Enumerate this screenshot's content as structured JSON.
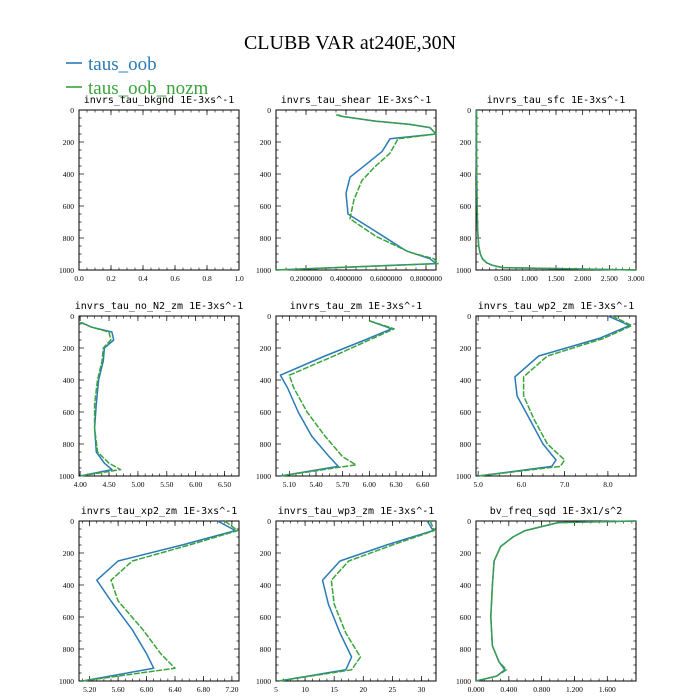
{
  "title": "CLUBB VAR at240E,30N",
  "legend": [
    {
      "name": "taus_oob",
      "color": "#2a7ab8"
    },
    {
      "name": "taus_oob_nozm",
      "color": "#3aa43a"
    }
  ],
  "chart_data": [
    {
      "type": "line",
      "title": "invrs_tau_bkgnd   1E-3xs^-1",
      "xlim": [
        0,
        1
      ],
      "ylim": [
        1000,
        0
      ],
      "xticks": [
        {
          "v": 0,
          "t": "0.0"
        },
        {
          "v": 0.2,
          "t": "0.2"
        },
        {
          "v": 0.4,
          "t": "0.4"
        },
        {
          "v": 0.6,
          "t": "0.6"
        },
        {
          "v": 0.8,
          "t": "0.8"
        },
        {
          "v": 1,
          "t": "1.0"
        }
      ],
      "yticks": [
        {
          "v": 0,
          "t": "0"
        },
        {
          "v": 200,
          "t": "200"
        },
        {
          "v": 400,
          "t": "400"
        },
        {
          "v": 600,
          "t": "600"
        },
        {
          "v": 800,
          "t": "800"
        },
        {
          "v": 1000,
          "t": "1000"
        }
      ],
      "series": [
        {
          "name": "taus_oob",
          "x": [],
          "y": []
        },
        {
          "name": "taus_oob_nozm",
          "x": [],
          "y": []
        }
      ]
    },
    {
      "type": "line",
      "title": "invrs_tau_shear   1E-3xs^-1",
      "xlim": [
        0.05,
        0.85
      ],
      "ylim": [
        1000,
        0
      ],
      "xticks": [
        {
          "v": 0.2,
          "t": "0.2000000"
        },
        {
          "v": 0.4,
          "t": "0.4000000"
        },
        {
          "v": 0.6,
          "t": "0.6000000"
        },
        {
          "v": 0.8,
          "t": "0.8000000"
        }
      ],
      "yticks": [
        {
          "v": 0,
          "t": "0"
        },
        {
          "v": 200,
          "t": "200"
        },
        {
          "v": 400,
          "t": "400"
        },
        {
          "v": 600,
          "t": "600"
        },
        {
          "v": 800,
          "t": "800"
        },
        {
          "v": 1000,
          "t": "1000"
        }
      ],
      "series": [
        {
          "name": "taus_oob",
          "x": [
            0.36,
            0.38,
            0.55,
            0.72,
            0.82,
            0.85,
            0.62,
            0.58,
            0.5,
            0.42,
            0.4,
            0.41,
            0.55,
            0.7,
            0.82,
            0.85,
            0.05
          ],
          "y": [
            30,
            40,
            70,
            90,
            110,
            150,
            180,
            260,
            340,
            420,
            520,
            650,
            760,
            880,
            930,
            960,
            1000
          ]
        },
        {
          "name": "taus_oob_nozm",
          "x": [
            0.35,
            0.38,
            0.55,
            0.72,
            0.82,
            0.85,
            0.66,
            0.62,
            0.54,
            0.48,
            0.44,
            0.42,
            0.55,
            0.72,
            0.84,
            0.86,
            0.05
          ],
          "y": [
            30,
            40,
            70,
            90,
            110,
            150,
            180,
            270,
            360,
            440,
            560,
            680,
            790,
            890,
            930,
            960,
            1000
          ]
        }
      ]
    },
    {
      "type": "line",
      "title": "invrs_tau_sfc   1E-3xs^-1",
      "xlim": [
        0,
        3
      ],
      "ylim": [
        1000,
        0
      ],
      "xticks": [
        {
          "v": 0.5,
          "t": "0.500"
        },
        {
          "v": 1.0,
          "t": "1.000"
        },
        {
          "v": 1.5,
          "t": "1.500"
        },
        {
          "v": 2.0,
          "t": "2.000"
        },
        {
          "v": 2.5,
          "t": "2.500"
        },
        {
          "v": 3.0,
          "t": "3.000"
        }
      ],
      "yticks": [
        {
          "v": 0,
          "t": "0"
        },
        {
          "v": 200,
          "t": "200"
        },
        {
          "v": 400,
          "t": "400"
        },
        {
          "v": 600,
          "t": "600"
        },
        {
          "v": 800,
          "t": "800"
        },
        {
          "v": 1000,
          "t": "1000"
        }
      ],
      "series": [
        {
          "name": "taus_oob",
          "x": [
            0.01,
            0.01,
            0.02,
            0.03,
            0.05,
            0.08,
            0.12,
            0.2,
            0.3,
            0.5,
            3.0
          ],
          "y": [
            0,
            300,
            600,
            750,
            850,
            900,
            930,
            955,
            970,
            985,
            1000
          ]
        },
        {
          "name": "taus_oob_nozm",
          "x": [
            0.01,
            0.01,
            0.02,
            0.03,
            0.05,
            0.08,
            0.12,
            0.2,
            0.3,
            0.5,
            3.0
          ],
          "y": [
            0,
            300,
            600,
            750,
            850,
            900,
            930,
            955,
            970,
            985,
            1000
          ]
        }
      ]
    },
    {
      "type": "line",
      "title": "invrs_tau_no_N2_zm   1E-3xs^-1",
      "xlim": [
        3.98,
        6.75
      ],
      "ylim": [
        1000,
        0
      ],
      "xticks": [
        {
          "v": 4.0,
          "t": "4.00"
        },
        {
          "v": 4.5,
          "t": "4.50"
        },
        {
          "v": 5.0,
          "t": "5.00"
        },
        {
          "v": 5.5,
          "t": "5.50"
        },
        {
          "v": 6.0,
          "t": "6.00"
        },
        {
          "v": 6.5,
          "t": "6.50"
        }
      ],
      "yticks": [
        {
          "v": 0,
          "t": "0"
        },
        {
          "v": 200,
          "t": "200"
        },
        {
          "v": 400,
          "t": "400"
        },
        {
          "v": 600,
          "t": "600"
        },
        {
          "v": 800,
          "t": "800"
        },
        {
          "v": 1000,
          "t": "1000"
        }
      ],
      "series": [
        {
          "name": "taus_oob",
          "x": [
            4.02,
            4.2,
            4.55,
            4.58,
            4.42,
            4.4,
            4.32,
            4.28,
            4.25,
            4.28,
            4.42,
            4.55,
            4.0
          ],
          "y": [
            40,
            70,
            100,
            150,
            200,
            280,
            400,
            550,
            700,
            850,
            920,
            960,
            1000
          ]
        },
        {
          "name": "taus_oob_nozm",
          "x": [
            4.0,
            4.2,
            4.5,
            4.53,
            4.4,
            4.38,
            4.3,
            4.25,
            4.25,
            4.3,
            4.5,
            4.7,
            4.0
          ],
          "y": [
            40,
            70,
            100,
            150,
            200,
            280,
            400,
            550,
            700,
            850,
            920,
            960,
            1000
          ]
        }
      ]
    },
    {
      "type": "line",
      "title": "invrs_tau_zm   1E-3xs^-1",
      "xlim": [
        4.95,
        6.75
      ],
      "ylim": [
        1000,
        0
      ],
      "xticks": [
        {
          "v": 5.1,
          "t": "5.10"
        },
        {
          "v": 5.4,
          "t": "5.40"
        },
        {
          "v": 5.7,
          "t": "5.70"
        },
        {
          "v": 6.0,
          "t": "6.00"
        },
        {
          "v": 6.3,
          "t": "6.30"
        },
        {
          "v": 6.6,
          "t": "6.60"
        }
      ],
      "yticks": [
        {
          "v": 0,
          "t": "0"
        },
        {
          "v": 200,
          "t": "200"
        },
        {
          "v": 400,
          "t": "400"
        },
        {
          "v": 600,
          "t": "600"
        },
        {
          "v": 800,
          "t": "800"
        },
        {
          "v": 1000,
          "t": "1000"
        }
      ],
      "series": [
        {
          "name": "taus_oob",
          "x": [
            6.0,
            6.25,
            5.95,
            5.5,
            5.0,
            5.08,
            5.2,
            5.35,
            5.55,
            5.65,
            5.0
          ],
          "y": [
            30,
            80,
            150,
            250,
            370,
            450,
            600,
            750,
            880,
            940,
            1000
          ]
        },
        {
          "name": "taus_oob_nozm",
          "x": [
            6.0,
            6.28,
            6.0,
            5.6,
            5.1,
            5.15,
            5.3,
            5.5,
            5.7,
            5.85,
            5.0
          ],
          "y": [
            30,
            80,
            150,
            250,
            370,
            450,
            600,
            750,
            880,
            930,
            1000
          ]
        }
      ]
    },
    {
      "type": "line",
      "title": "invrs_tau_wp2_zm   1E-3xs^-1",
      "xlim": [
        4.95,
        8.65
      ],
      "ylim": [
        1000,
        0
      ],
      "xticks": [
        {
          "v": 5.0,
          "t": "5.0"
        },
        {
          "v": 6.0,
          "t": "6.0"
        },
        {
          "v": 7.0,
          "t": "7.0"
        },
        {
          "v": 8.0,
          "t": "8.0"
        }
      ],
      "yticks": [
        {
          "v": 0,
          "t": "0"
        },
        {
          "v": 200,
          "t": "200"
        },
        {
          "v": 400,
          "t": "400"
        },
        {
          "v": 600,
          "t": "600"
        },
        {
          "v": 800,
          "t": "800"
        },
        {
          "v": 1000,
          "t": "1000"
        }
      ],
      "series": [
        {
          "name": "taus_oob",
          "x": [
            8.0,
            8.5,
            7.8,
            6.4,
            5.85,
            5.9,
            6.2,
            6.5,
            6.8,
            6.7,
            5.0
          ],
          "y": [
            0,
            60,
            140,
            250,
            380,
            500,
            650,
            800,
            900,
            940,
            1000
          ]
        },
        {
          "name": "taus_oob_nozm",
          "x": [
            8.1,
            8.55,
            7.9,
            6.6,
            6.05,
            6.05,
            6.3,
            6.6,
            7.0,
            6.9,
            5.0
          ],
          "y": [
            0,
            60,
            140,
            250,
            380,
            500,
            650,
            800,
            900,
            940,
            1000
          ]
        }
      ]
    },
    {
      "type": "line",
      "title": "invrs_tau_xp2_zm   1E-3xs^-1",
      "xlim": [
        5.05,
        7.3
      ],
      "ylim": [
        1000,
        0
      ],
      "xticks": [
        {
          "v": 5.2,
          "t": "5.20"
        },
        {
          "v": 5.6,
          "t": "5.60"
        },
        {
          "v": 6.0,
          "t": "6.00"
        },
        {
          "v": 6.4,
          "t": "6.40"
        },
        {
          "v": 6.8,
          "t": "6.80"
        },
        {
          "v": 7.2,
          "t": "7.20"
        }
      ],
      "yticks": [
        {
          "v": 0,
          "t": "0"
        },
        {
          "v": 200,
          "t": "200"
        },
        {
          "v": 400,
          "t": "400"
        },
        {
          "v": 600,
          "t": "600"
        },
        {
          "v": 800,
          "t": "800"
        },
        {
          "v": 1000,
          "t": "1000"
        }
      ],
      "series": [
        {
          "name": "taus_oob",
          "x": [
            7.0,
            7.25,
            6.5,
            5.6,
            5.3,
            5.5,
            5.8,
            6.0,
            6.1,
            5.1
          ],
          "y": [
            0,
            60,
            150,
            250,
            370,
            500,
            680,
            830,
            920,
            1000
          ]
        },
        {
          "name": "taus_oob_nozm",
          "x": [
            7.1,
            7.28,
            6.6,
            5.8,
            5.5,
            5.6,
            5.95,
            6.2,
            6.4,
            5.1
          ],
          "y": [
            0,
            60,
            150,
            250,
            370,
            500,
            680,
            830,
            920,
            1000
          ]
        }
      ]
    },
    {
      "type": "line",
      "title": "invrs_tau_wp3_zm   1E-3xs^-1",
      "xlim": [
        5,
        32.5
      ],
      "ylim": [
        1000,
        0
      ],
      "xticks": [
        {
          "v": 5,
          "t": "5"
        },
        {
          "v": 10,
          "t": "10"
        },
        {
          "v": 15,
          "t": "15"
        },
        {
          "v": 20,
          "t": "20"
        },
        {
          "v": 25,
          "t": "25"
        },
        {
          "v": 30,
          "t": "30"
        }
      ],
      "yticks": [
        {
          "v": 0,
          "t": "0"
        },
        {
          "v": 200,
          "t": "200"
        },
        {
          "v": 400,
          "t": "400"
        },
        {
          "v": 600,
          "t": "600"
        },
        {
          "v": 800,
          "t": "800"
        },
        {
          "v": 1000,
          "t": "1000"
        }
      ],
      "series": [
        {
          "name": "taus_oob",
          "x": [
            31,
            32,
            24,
            16,
            13,
            14,
            16,
            18,
            17,
            5.5
          ],
          "y": [
            0,
            60,
            150,
            250,
            370,
            520,
            700,
            850,
            930,
            1000
          ]
        },
        {
          "name": "taus_oob_nozm",
          "x": [
            31.5,
            32.2,
            25,
            17.5,
            14.5,
            15,
            17,
            19.5,
            18,
            5.5
          ],
          "y": [
            0,
            60,
            150,
            250,
            370,
            520,
            700,
            850,
            930,
            1000
          ]
        }
      ]
    },
    {
      "type": "line",
      "title": "bv_freq_sqd   1E-3x1/s^2",
      "xlim": [
        0,
        1.95
      ],
      "ylim": [
        1000,
        0
      ],
      "xticks": [
        {
          "v": 0,
          "t": "0.000"
        },
        {
          "v": 0.4,
          "t": "0.400"
        },
        {
          "v": 0.8,
          "t": "0.800"
        },
        {
          "v": 1.2,
          "t": "1.200"
        },
        {
          "v": 1.6,
          "t": "1.600"
        }
      ],
      "yticks": [
        {
          "v": 0,
          "t": "0"
        },
        {
          "v": 200,
          "t": "200"
        },
        {
          "v": 400,
          "t": "400"
        },
        {
          "v": 600,
          "t": "600"
        },
        {
          "v": 800,
          "t": "800"
        },
        {
          "v": 1000,
          "t": "1000"
        }
      ],
      "series": [
        {
          "name": "taus_oob",
          "x": [
            1.95,
            1.0,
            0.6,
            0.45,
            0.3,
            0.22,
            0.2,
            0.18,
            0.2,
            0.28,
            0.35,
            0.25,
            0.0
          ],
          "y": [
            0,
            10,
            60,
            100,
            160,
            250,
            400,
            600,
            780,
            880,
            930,
            970,
            1000
          ]
        },
        {
          "name": "taus_oob_nozm",
          "x": [
            1.95,
            1.0,
            0.6,
            0.45,
            0.3,
            0.22,
            0.2,
            0.18,
            0.2,
            0.28,
            0.37,
            0.25,
            0.0
          ],
          "y": [
            0,
            10,
            60,
            100,
            160,
            250,
            400,
            600,
            780,
            880,
            930,
            970,
            1000
          ]
        }
      ]
    }
  ]
}
